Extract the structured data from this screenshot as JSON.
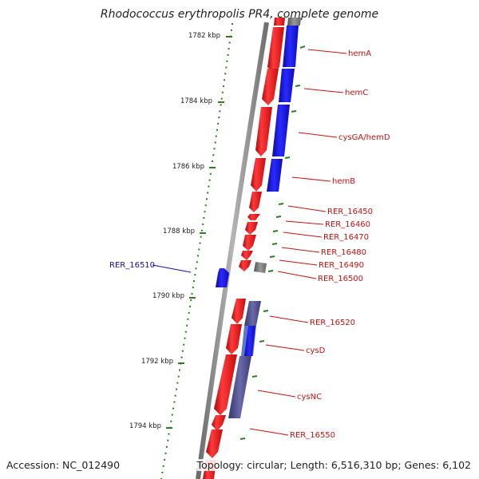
{
  "title": "Rhodococcus erythropolis PR4, complete genome",
  "footer": {
    "accession": "Accession: NC_012490",
    "summary": "Topology: circular; Length: 6,516,310 bp; Genes: 6,102"
  },
  "scale_ticks": [
    "1782 kbp",
    "1784 kbp",
    "1786 kbp",
    "1788 kbp",
    "1790 kbp",
    "1792 kbp",
    "1794 kbp"
  ],
  "gene_labels": [
    "hemA",
    "hemC",
    "cysGA/hemD",
    "hemB",
    "RER_16450",
    "RER_16460",
    "RER_16470",
    "RER_16480",
    "RER_16490",
    "RER_16500",
    "RER_16510",
    "RER_16520",
    "cysD",
    "cysNC",
    "RER_16550"
  ],
  "colors": {
    "forward_cds": "#e8141b",
    "reverse_cds": "#1a1aee",
    "other_feature": "#7a7a7a",
    "slate_feature": "#4a4a8a",
    "label_forward": "#cc1111",
    "label_reverse": "#1111aa",
    "backbone": "#8a8a8a",
    "scale": "#2e7d1e"
  }
}
